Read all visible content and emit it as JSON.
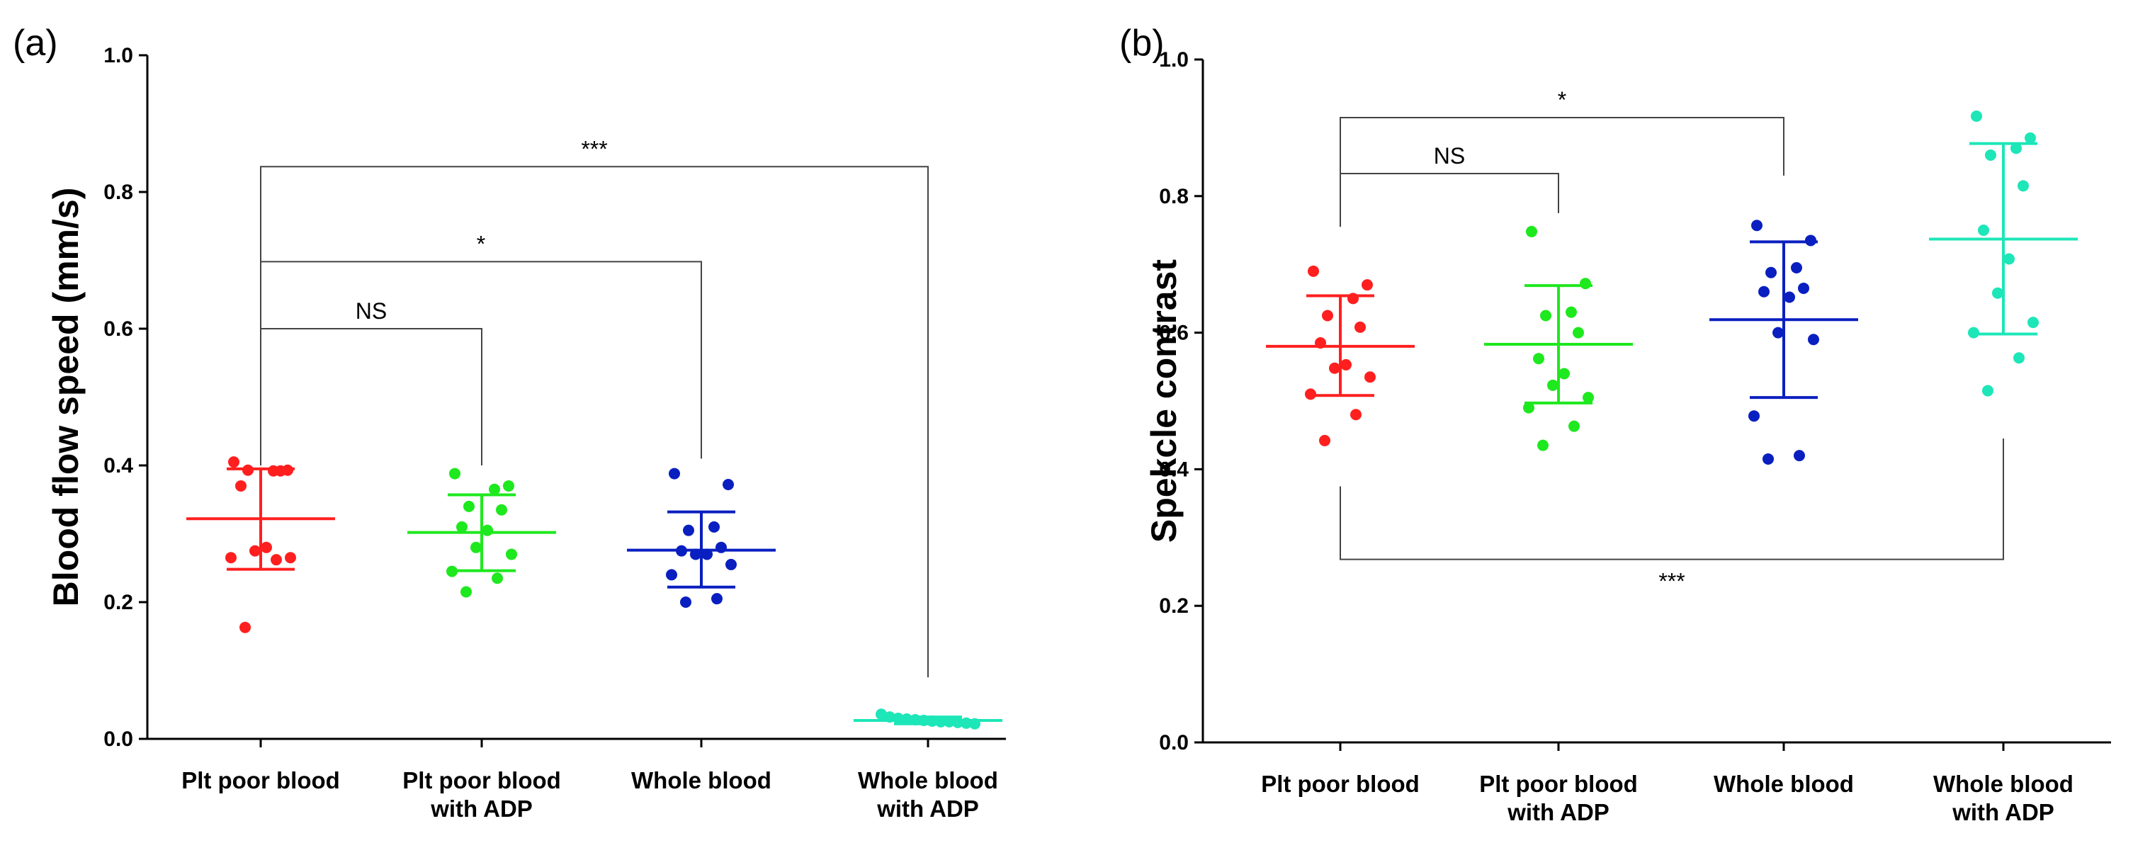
{
  "chart_data": [
    {
      "type": "scatter",
      "panel_label": "(a)",
      "title": "",
      "xlabel": "",
      "ylabel": "Blood flow speed (mm/s)",
      "ylim": [
        0.0,
        1.0
      ],
      "yticks": [
        "0.0",
        "0.2",
        "0.4",
        "0.6",
        "0.8",
        "1.0"
      ],
      "categories": [
        [
          "Plt poor blood"
        ],
        [
          "Plt poor blood",
          "with ADP"
        ],
        [
          "Whole blood"
        ],
        [
          "Whole blood",
          "with ADP"
        ]
      ],
      "series": [
        {
          "name": "Plt poor blood",
          "color": "#ff1f1f",
          "mean": 0.322,
          "sd_low": 0.248,
          "sd_high": 0.395,
          "values": [
            0.405,
            0.393,
            0.392,
            0.393,
            0.392,
            0.37,
            0.28,
            0.275,
            0.265,
            0.265,
            0.262,
            0.163
          ]
        },
        {
          "name": "Plt poor blood with ADP",
          "color": "#1ee81e",
          "mean": 0.302,
          "sd_low": 0.246,
          "sd_high": 0.357,
          "values": [
            0.388,
            0.37,
            0.365,
            0.34,
            0.335,
            0.31,
            0.305,
            0.28,
            0.27,
            0.245,
            0.235,
            0.215
          ]
        },
        {
          "name": "Whole blood",
          "color": "#0a1fc0",
          "mean": 0.276,
          "sd_low": 0.222,
          "sd_high": 0.332,
          "values": [
            0.388,
            0.372,
            0.31,
            0.305,
            0.28,
            0.275,
            0.27,
            0.27,
            0.255,
            0.24,
            0.205,
            0.2
          ]
        },
        {
          "name": "Whole blood with ADP",
          "color": "#1de6b8",
          "mean": 0.027,
          "sd_low": 0.022,
          "sd_high": 0.032,
          "values": [
            0.036,
            0.032,
            0.03,
            0.029,
            0.028,
            0.027,
            0.026,
            0.025,
            0.025,
            0.024,
            0.023,
            0.022
          ]
        }
      ],
      "significance": [
        {
          "label": "NS",
          "from": 0,
          "to": 1,
          "y": 0.6,
          "drop_from": 0.4,
          "drop_to": 0.4
        },
        {
          "label": "*",
          "from": 0,
          "to": 2,
          "y": 0.698,
          "drop_from": 0.4,
          "drop_to": 0.41
        },
        {
          "label": "***",
          "from": 0,
          "to": 3,
          "y": 0.837,
          "drop_from": 0.4,
          "drop_to": 0.09
        }
      ]
    },
    {
      "type": "scatter",
      "panel_label": "(b)",
      "title": "",
      "xlabel": "",
      "ylabel": "Spekcle contrast",
      "ylim": [
        0.0,
        1.0
      ],
      "yticks": [
        "0.0",
        "0.2",
        "0.4",
        "0.6",
        "0.8",
        "1.0"
      ],
      "categories": [
        [
          "Plt poor blood"
        ],
        [
          "Plt poor blood",
          "with ADP"
        ],
        [
          "Whole blood"
        ],
        [
          "Whole blood",
          "with ADP"
        ]
      ],
      "series": [
        {
          "name": "Plt poor blood",
          "color": "#ff1f1f",
          "mean": 0.58,
          "sd_low": 0.508,
          "sd_high": 0.654,
          "values": [
            0.69,
            0.67,
            0.65,
            0.625,
            0.608,
            0.585,
            0.553,
            0.548,
            0.535,
            0.51,
            0.48,
            0.442
          ]
        },
        {
          "name": "Plt poor blood with ADP",
          "color": "#1ee81e",
          "mean": 0.583,
          "sd_low": 0.497,
          "sd_high": 0.669,
          "values": [
            0.748,
            0.672,
            0.63,
            0.625,
            0.6,
            0.562,
            0.54,
            0.523,
            0.505,
            0.49,
            0.463,
            0.435
          ]
        },
        {
          "name": "Whole blood",
          "color": "#0a1fc0",
          "mean": 0.619,
          "sd_low": 0.505,
          "sd_high": 0.733,
          "values": [
            0.757,
            0.735,
            0.695,
            0.688,
            0.665,
            0.66,
            0.652,
            0.6,
            0.59,
            0.478,
            0.42,
            0.415
          ]
        },
        {
          "name": "Whole blood with ADP",
          "color": "#1de6b8",
          "mean": 0.737,
          "sd_low": 0.598,
          "sd_high": 0.877,
          "values": [
            0.917,
            0.885,
            0.87,
            0.86,
            0.815,
            0.75,
            0.708,
            0.658,
            0.615,
            0.6,
            0.563,
            0.515
          ]
        }
      ],
      "significance": [
        {
          "label": "NS",
          "from": 0,
          "to": 1,
          "y": 0.833,
          "drop_from": 0.755,
          "drop_to": 0.775
        },
        {
          "label": "*",
          "from": 0,
          "to": 2,
          "y": 0.915,
          "drop_from": 0.755,
          "drop_to": 0.83
        },
        {
          "label": "***",
          "from": 0,
          "to": 3,
          "y": 0.268,
          "drop_from": 0.375,
          "drop_to": 0.445,
          "below": true
        }
      ]
    }
  ]
}
